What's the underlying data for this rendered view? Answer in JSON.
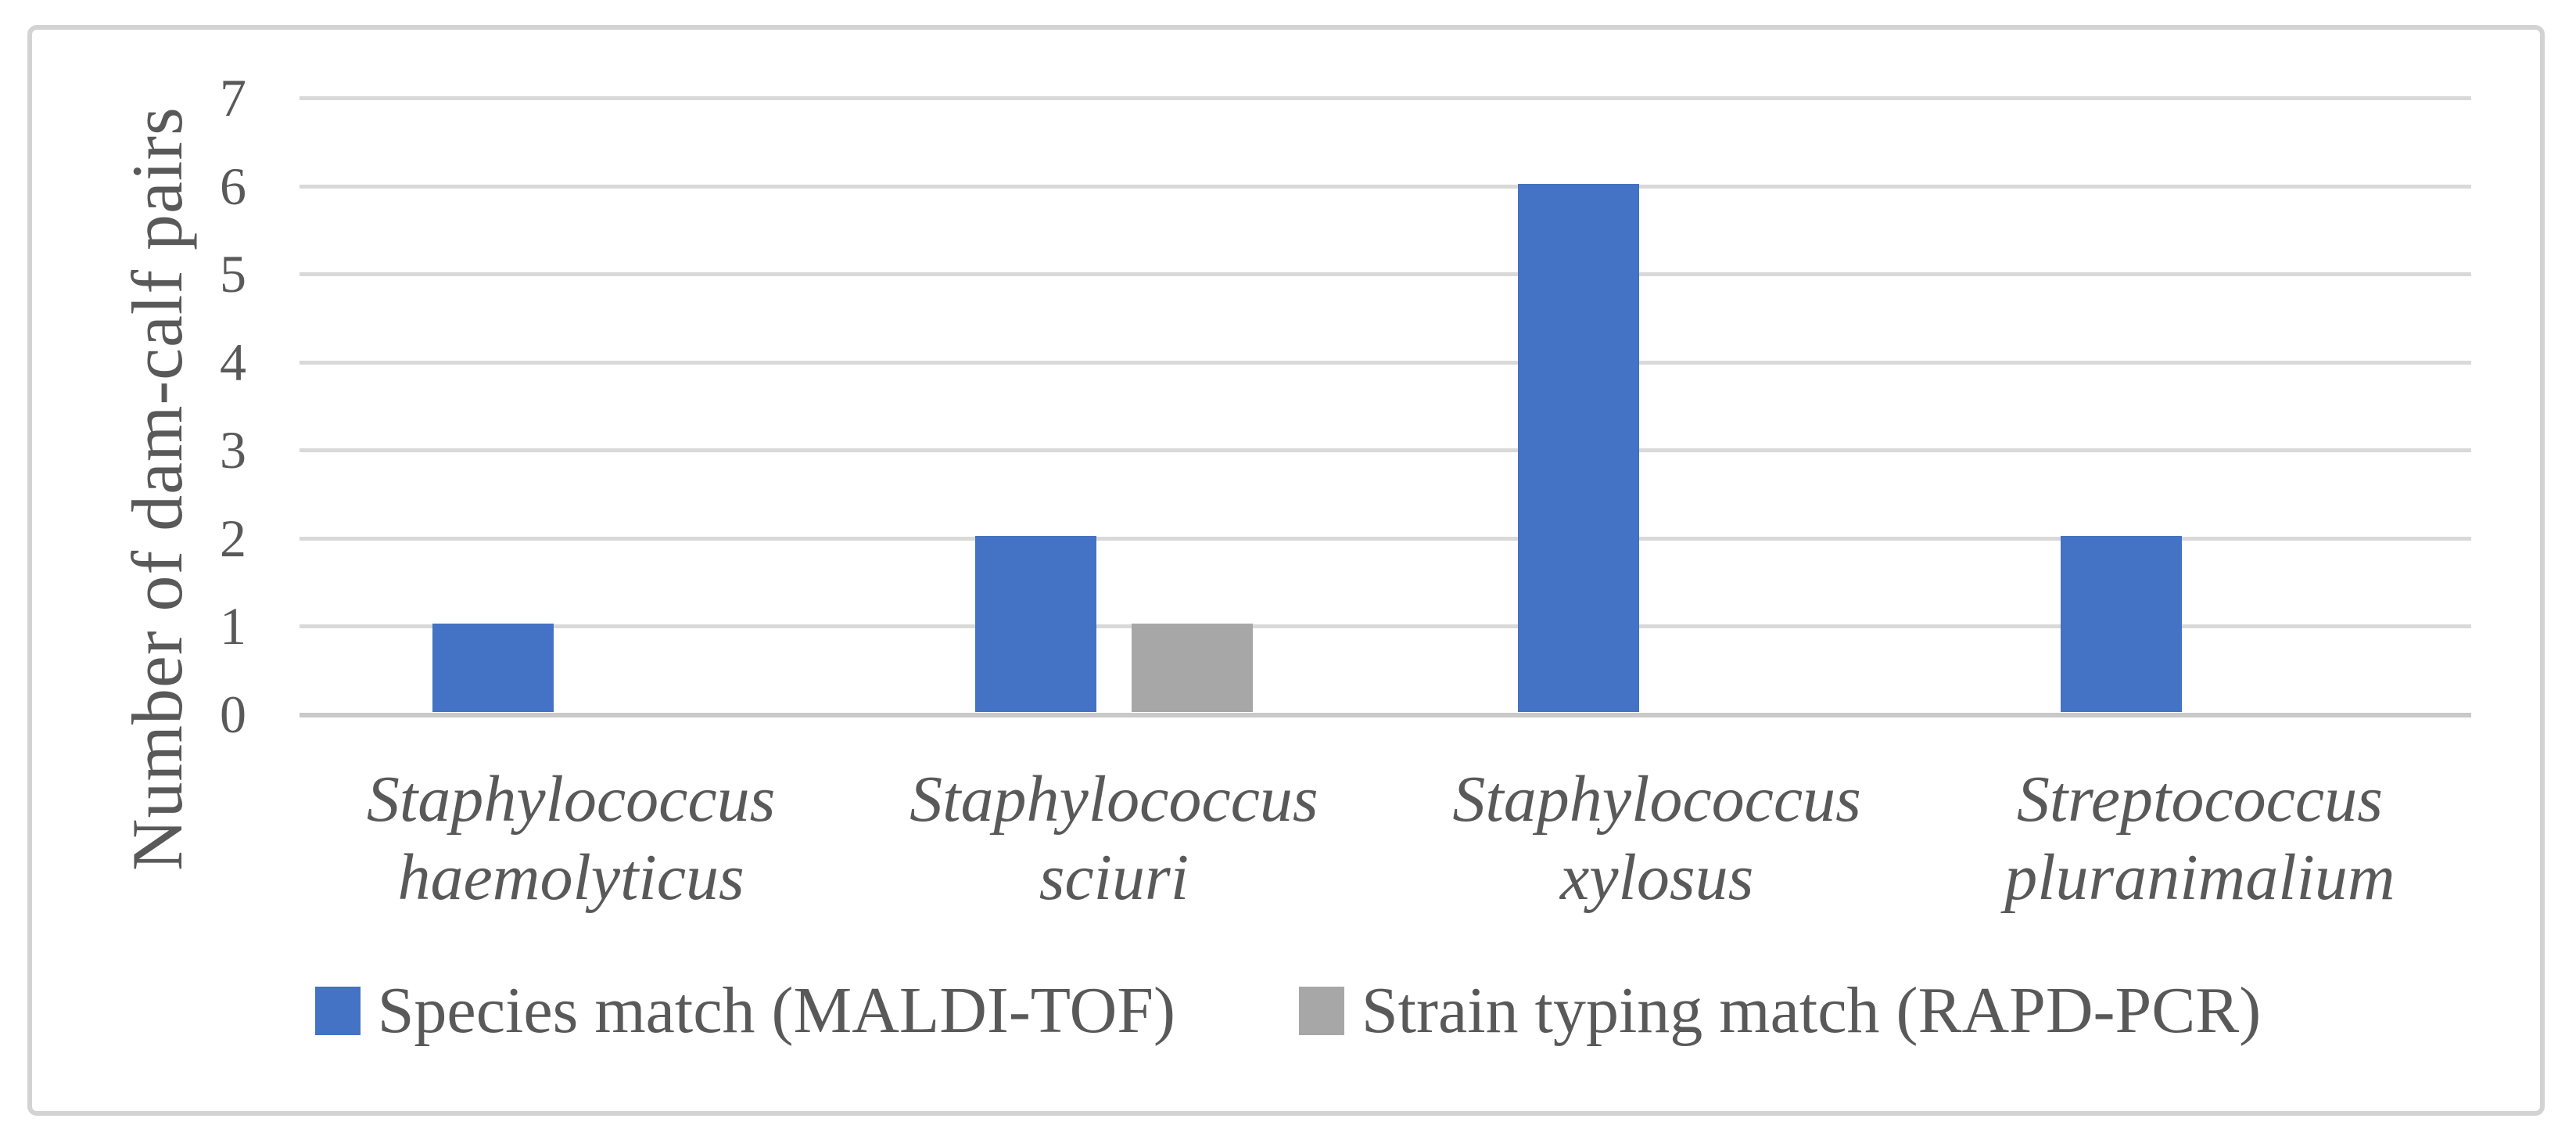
{
  "figure": {
    "background_color": "#ffffff",
    "border_color": "#d3d3d3"
  },
  "colors": {
    "gridline": "#d9d9d9",
    "axis_line": "#c9c9c9",
    "text": "#595959",
    "series_blue": "#4472c4",
    "series_gray": "#a7a7a7"
  },
  "chart_data": {
    "type": "bar",
    "title": "",
    "xlabel": "",
    "ylabel": "Number of dam-calf pairs",
    "ylim": [
      0,
      7
    ],
    "yticks": [
      0,
      1,
      2,
      3,
      4,
      5,
      6,
      7
    ],
    "grid": "horizontal",
    "legend_position": "bottom",
    "categories": [
      "Staphylococcus haemolyticus",
      "Staphylococcus sciuri",
      "Staphylococcus xylosus",
      "Streptococcus pluranimalium"
    ],
    "category_lines": [
      [
        "Staphylococcus",
        "haemolyticus"
      ],
      [
        "Staphylococcus sciuri"
      ],
      [
        "Staphylococcus",
        "xylosus"
      ],
      [
        "Streptococcus",
        "pluranimalium"
      ]
    ],
    "series": [
      {
        "name": "Species match (MALDI-TOF)",
        "color": "#4472c4",
        "values": [
          1,
          2,
          6,
          2
        ]
      },
      {
        "name": "Strain typing match (RAPD-PCR)",
        "color": "#a7a7a7",
        "values": [
          0,
          1,
          0,
          0
        ]
      }
    ]
  },
  "legend": {
    "items": [
      {
        "label": "Species match (MALDI-TOF)",
        "color": "#4472c4"
      },
      {
        "label": "Strain typing match (RAPD-PCR)",
        "color": "#a7a7a7"
      }
    ]
  }
}
